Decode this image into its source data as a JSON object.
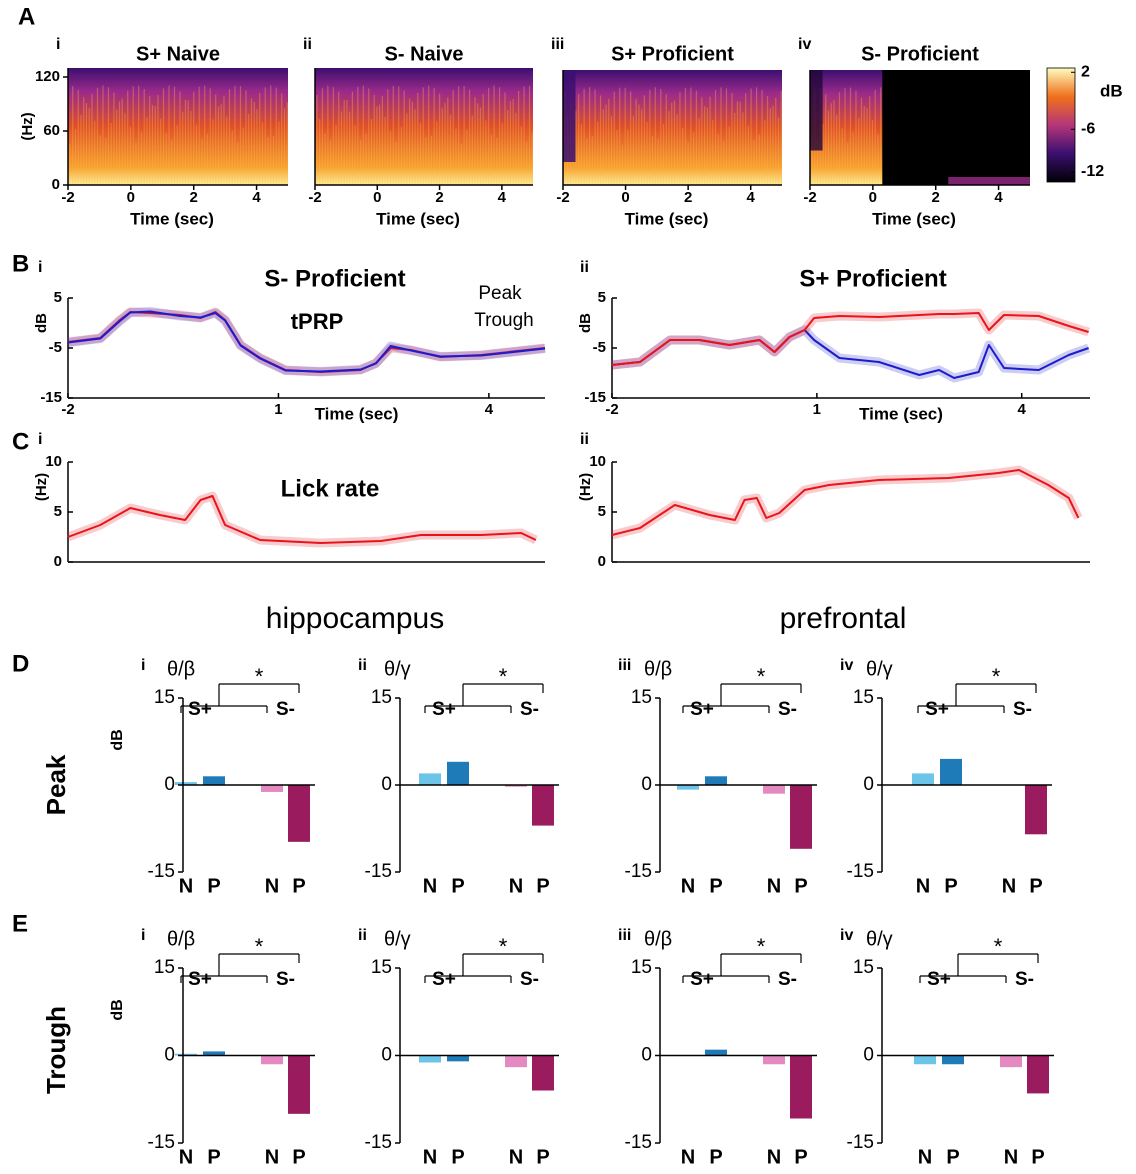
{
  "figure": {
    "panel_letters": [
      "A",
      "B",
      "C",
      "D",
      "E"
    ],
    "headings": [
      "hippocampus",
      "prefrontal"
    ],
    "rows": [
      "Peak",
      "Trough"
    ]
  },
  "chart_data": [
    {
      "type": "spectrogram",
      "label": "i",
      "title": "S+ Naive",
      "xlabel": "Time (sec)",
      "ylabel": "(Hz)",
      "xlim": [
        -2,
        5
      ],
      "xticks": [
        -2,
        0,
        2,
        4
      ],
      "ylim": [
        0,
        130
      ],
      "yticks": [
        0,
        60,
        120
      ]
    },
    {
      "type": "spectrogram",
      "label": "ii",
      "title": "S- Naive",
      "xlabel": "Time (sec)",
      "xlim": [
        -2,
        5
      ],
      "xticks": [
        -2,
        0,
        2,
        4
      ],
      "ylim": [
        0,
        130
      ]
    },
    {
      "type": "spectrogram",
      "label": "iii",
      "title": "S+ Proficient",
      "xlabel": "Time (sec)",
      "xlim": [
        -2,
        5
      ],
      "xticks": [
        -2,
        0,
        2,
        4
      ],
      "ylim": [
        0,
        130
      ]
    },
    {
      "type": "spectrogram",
      "label": "iv",
      "title": "S- Proficient",
      "xlabel": "Time (sec)",
      "xlim": [
        -2,
        5
      ],
      "xticks": [
        -2,
        0,
        2,
        4
      ],
      "ylim": [
        0,
        130
      ]
    },
    {
      "type": "colorbar",
      "label": "dB",
      "ylim": [
        -13.4,
        2.6
      ],
      "yticks": [
        2,
        -6,
        -12
      ],
      "colormap": [
        "#000004",
        "#3b0f70",
        "#b5367a",
        "#f0701a",
        "#fcfdbf"
      ]
    },
    {
      "type": "line",
      "label": "i",
      "title": "S- Proficient",
      "subtitle": "tPRP",
      "xlabel": "Time (sec)",
      "ylabel": "dB",
      "legend": "upper right",
      "x": [
        -2,
        -1.54,
        -1.26,
        -1.11,
        -0.83,
        -0.4,
        -0.11,
        0.1,
        0.24,
        0.46,
        0.74,
        1.1,
        1.6,
        2.17,
        2.39,
        2.6,
        2.89,
        3.31,
        3.89,
        4.8
      ],
      "xlim": [
        -2,
        4.8
      ],
      "xticks": [
        -2,
        1,
        4
      ],
      "ylim": [
        -15,
        5
      ],
      "yticks": [
        -15,
        -5,
        5
      ],
      "series": [
        {
          "name": "Peak",
          "color": "#e8141c",
          "values": [
            -3.8,
            -3,
            0.6,
            2.2,
            2,
            1.6,
            1,
            2.2,
            0.6,
            -4.4,
            -7,
            -9.4,
            -9.8,
            -9.4,
            -8,
            -5,
            -5.4,
            -6.8,
            -6.4,
            -5
          ]
        },
        {
          "name": "Trough",
          "color": "#1c1ccc",
          "values": [
            -3.9,
            -3.1,
            0.4,
            2.1,
            2.3,
            1.4,
            1.1,
            2,
            0.5,
            -4.5,
            -7.1,
            -9.5,
            -9.7,
            -9.3,
            -8.1,
            -4.6,
            -5.5,
            -6.7,
            -6.5,
            -5.1
          ]
        }
      ]
    },
    {
      "type": "line",
      "label": "ii",
      "title": "S+ Proficient",
      "xlabel": "Time (sec)",
      "ylabel": "dB",
      "x": [
        -2,
        -1.59,
        -1.15,
        -0.72,
        -0.28,
        0.16,
        0.38,
        0.6,
        0.82,
        0.96,
        1.33,
        1.91,
        2.5,
        2.79,
        3.01,
        3.37,
        3.52,
        3.74,
        4.25,
        4.69,
        4.98
      ],
      "xlim": [
        -2,
        5
      ],
      "xticks": [
        -2,
        1,
        4
      ],
      "ylim": [
        -15,
        5
      ],
      "yticks": [
        -15,
        -5,
        5
      ],
      "series": [
        {
          "color": "#1c1ccc",
          "values": [
            -8.4,
            -7.8,
            -3.4,
            -3.4,
            -4.4,
            -3.4,
            -5.8,
            -2.8,
            -1.4,
            -3.4,
            -7,
            -7.8,
            -10.4,
            -9.4,
            -11,
            -9.8,
            -4.4,
            -9,
            -9.4,
            -6.4,
            -5
          ]
        },
        {
          "color": "#e8141c",
          "values": [
            -8.4,
            -7.8,
            -3.4,
            -3.4,
            -4.4,
            -3.4,
            -5.8,
            -2.8,
            -1.4,
            1,
            1.4,
            1.2,
            1.6,
            1.8,
            1.8,
            2,
            -1.4,
            1.6,
            1.4,
            -0.6,
            -1.8
          ]
        }
      ]
    },
    {
      "type": "line",
      "label": "i",
      "title": "Lick rate",
      "ylabel": "(Hz)",
      "x": [
        -2,
        -1.54,
        -1.11,
        -0.69,
        -0.33,
        -0.11,
        0.06,
        0.24,
        0.74,
        1.6,
        2.46,
        3.03,
        3.89,
        4.46,
        4.67
      ],
      "xlim": [
        -2,
        4.8
      ],
      "ylim": [
        0,
        10
      ],
      "yticks": [
        0,
        5,
        10
      ],
      "series": [
        {
          "color": "#e8141c",
          "values": [
            2.5,
            3.7,
            5.4,
            4.7,
            4.2,
            6.2,
            6.6,
            3.7,
            2.2,
            1.9,
            2.1,
            2.7,
            2.7,
            2.9,
            2.2
          ]
        }
      ]
    },
    {
      "type": "line",
      "label": "ii",
      "ylabel": "(Hz)",
      "x": [
        -2,
        -1.59,
        -1.08,
        -0.57,
        -0.2,
        -0.06,
        0.12,
        0.26,
        0.45,
        0.82,
        1.18,
        1.91,
        2.93,
        3.66,
        3.96,
        4.39,
        4.69,
        4.83
      ],
      "xlim": [
        -2,
        5
      ],
      "ylim": [
        0,
        10
      ],
      "yticks": [
        0,
        5,
        10
      ],
      "series": [
        {
          "color": "#e8141c",
          "values": [
            2.7,
            3.4,
            5.7,
            4.7,
            4.2,
            6.2,
            6.4,
            4.4,
            4.9,
            7.2,
            7.7,
            8.2,
            8.4,
            8.9,
            9.2,
            7.7,
            6.4,
            4.4
          ]
        }
      ]
    },
    {
      "type": "bar",
      "label": "i",
      "title": "θ/β",
      "ylabel": "dB",
      "groups": [
        "S+",
        "S-"
      ],
      "categories": [
        "N",
        "P",
        "N",
        "P"
      ],
      "values": [
        0.5,
        1.5,
        -1.2,
        -9.8
      ],
      "colors": [
        "#6cc5e9",
        "#1f7bb8",
        "#e48ac0",
        "#9b1b5f"
      ],
      "ylim": [
        -15,
        15
      ],
      "yticks": [
        15,
        0,
        -15
      ],
      "annotation": "*"
    },
    {
      "type": "bar",
      "label": "ii",
      "title": "θ/γ",
      "groups": [
        "S+",
        "S-"
      ],
      "categories": [
        "N",
        "P",
        "N",
        "P"
      ],
      "values": [
        2,
        4,
        -0.3,
        -7
      ],
      "colors": [
        "#6cc5e9",
        "#1f7bb8",
        "#e48ac0",
        "#9b1b5f"
      ],
      "ylim": [
        -15,
        15
      ],
      "yticks": [
        15,
        0,
        -15
      ],
      "annotation": "*"
    },
    {
      "type": "bar",
      "label": "iii",
      "title": "θ/β",
      "groups": [
        "S+",
        "S-"
      ],
      "categories": [
        "N",
        "P",
        "N",
        "P"
      ],
      "values": [
        -0.8,
        1.5,
        -1.5,
        -11
      ],
      "colors": [
        "#6cc5e9",
        "#1f7bb8",
        "#e48ac0",
        "#9b1b5f"
      ],
      "ylim": [
        -15,
        15
      ],
      "yticks": [
        15,
        0,
        -15
      ],
      "annotation": "*"
    },
    {
      "type": "bar",
      "label": "iv",
      "title": "θ/γ",
      "groups": [
        "S+",
        "S-"
      ],
      "categories": [
        "N",
        "P",
        "N",
        "P"
      ],
      "values": [
        2,
        4.5,
        0,
        -8.5
      ],
      "colors": [
        "#6cc5e9",
        "#1f7bb8",
        "#e48ac0",
        "#9b1b5f"
      ],
      "ylim": [
        -15,
        15
      ],
      "yticks": [
        15,
        0,
        -15
      ],
      "annotation": "*"
    },
    {
      "type": "bar",
      "label": "i",
      "title": "θ/β",
      "ylabel": "dB",
      "groups": [
        "S+",
        "S-"
      ],
      "categories": [
        "N",
        "P",
        "N",
        "P"
      ],
      "values": [
        0.3,
        0.7,
        -1.5,
        -10
      ],
      "colors": [
        "#6cc5e9",
        "#1f7bb8",
        "#e48ac0",
        "#9b1b5f"
      ],
      "ylim": [
        -15,
        15
      ],
      "yticks": [
        15,
        0,
        -15
      ],
      "annotation": "*"
    },
    {
      "type": "bar",
      "label": "ii",
      "title": "θ/γ",
      "groups": [
        "S+",
        "S-"
      ],
      "categories": [
        "N",
        "P",
        "N",
        "P"
      ],
      "values": [
        -1.2,
        -1,
        -2,
        -6
      ],
      "colors": [
        "#6cc5e9",
        "#1f7bb8",
        "#e48ac0",
        "#9b1b5f"
      ],
      "ylim": [
        -15,
        15
      ],
      "yticks": [
        15,
        0,
        -15
      ],
      "annotation": "*"
    },
    {
      "type": "bar",
      "label": "iii",
      "title": "θ/β",
      "groups": [
        "S+",
        "S-"
      ],
      "categories": [
        "N",
        "P",
        "N",
        "P"
      ],
      "values": [
        0,
        1,
        -1.5,
        -10.8
      ],
      "colors": [
        "#6cc5e9",
        "#1f7bb8",
        "#e48ac0",
        "#9b1b5f"
      ],
      "ylim": [
        -15,
        15
      ],
      "yticks": [
        15,
        0,
        -15
      ],
      "annotation": "*"
    },
    {
      "type": "bar",
      "label": "iv",
      "title": "θ/γ",
      "groups": [
        "S+",
        "S-"
      ],
      "categories": [
        "N",
        "P",
        "N",
        "P"
      ],
      "values": [
        -1.5,
        -1.5,
        -2,
        -6.5
      ],
      "colors": [
        "#6cc5e9",
        "#1f7bb8",
        "#e48ac0",
        "#9b1b5f"
      ],
      "ylim": [
        -15,
        15
      ],
      "yticks": [
        15,
        0,
        -15
      ],
      "annotation": "*"
    }
  ]
}
